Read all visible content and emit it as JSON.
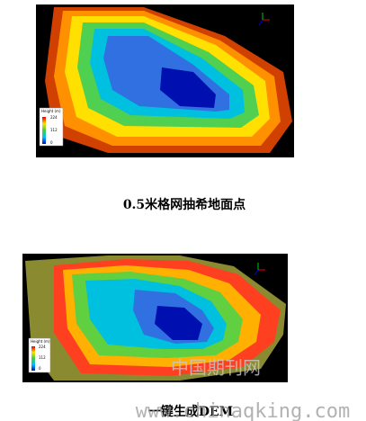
{
  "figures": [
    {
      "legend": {
        "title": "Height (m)",
        "max": "224",
        "mid": "112",
        "min": "0"
      },
      "caption": "0.5米格网抽希地面点"
    },
    {
      "legend": {
        "title": "Height (m)",
        "max": "224",
        "mid": "112",
        "min": "0"
      },
      "caption": "一键生成DEM"
    }
  ],
  "watermark": {
    "cn": "中国期刊网",
    "url": "www.chinaqking.com"
  }
}
